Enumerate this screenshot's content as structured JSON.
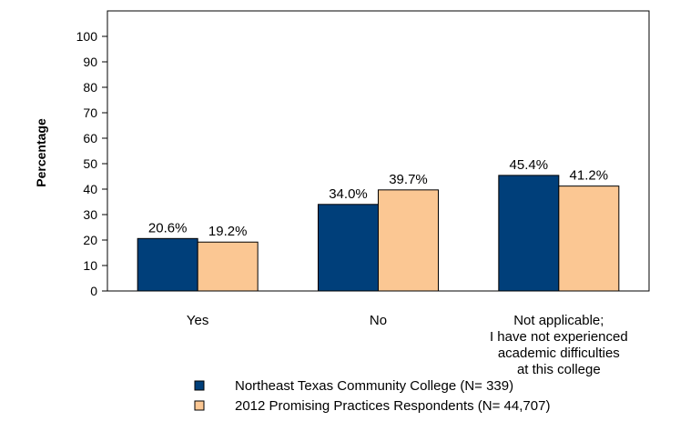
{
  "chart_data": {
    "type": "bar",
    "ylabel": "Percentage",
    "xlabel": "",
    "title": "",
    "ylim": [
      0,
      110
    ],
    "yticks": [
      0,
      10,
      20,
      30,
      40,
      50,
      60,
      70,
      80,
      90,
      100
    ],
    "categories": [
      [
        "Yes"
      ],
      [
        "No"
      ],
      [
        "Not applicable;",
        "I have not experienced",
        "academic difficulties",
        "at this college"
      ]
    ],
    "series": [
      {
        "name": "Northeast Texas Community College  (N= 339)",
        "color": "#003f7a",
        "values": [
          20.6,
          34.0,
          45.4
        ]
      },
      {
        "name": "2012 Promising Practices Respondents (N= 44,707)",
        "color": "#fbc793",
        "values": [
          19.2,
          39.7,
          41.2
        ]
      }
    ],
    "value_format": "one decimal with %",
    "legend_position": "bottom",
    "grid": false
  }
}
